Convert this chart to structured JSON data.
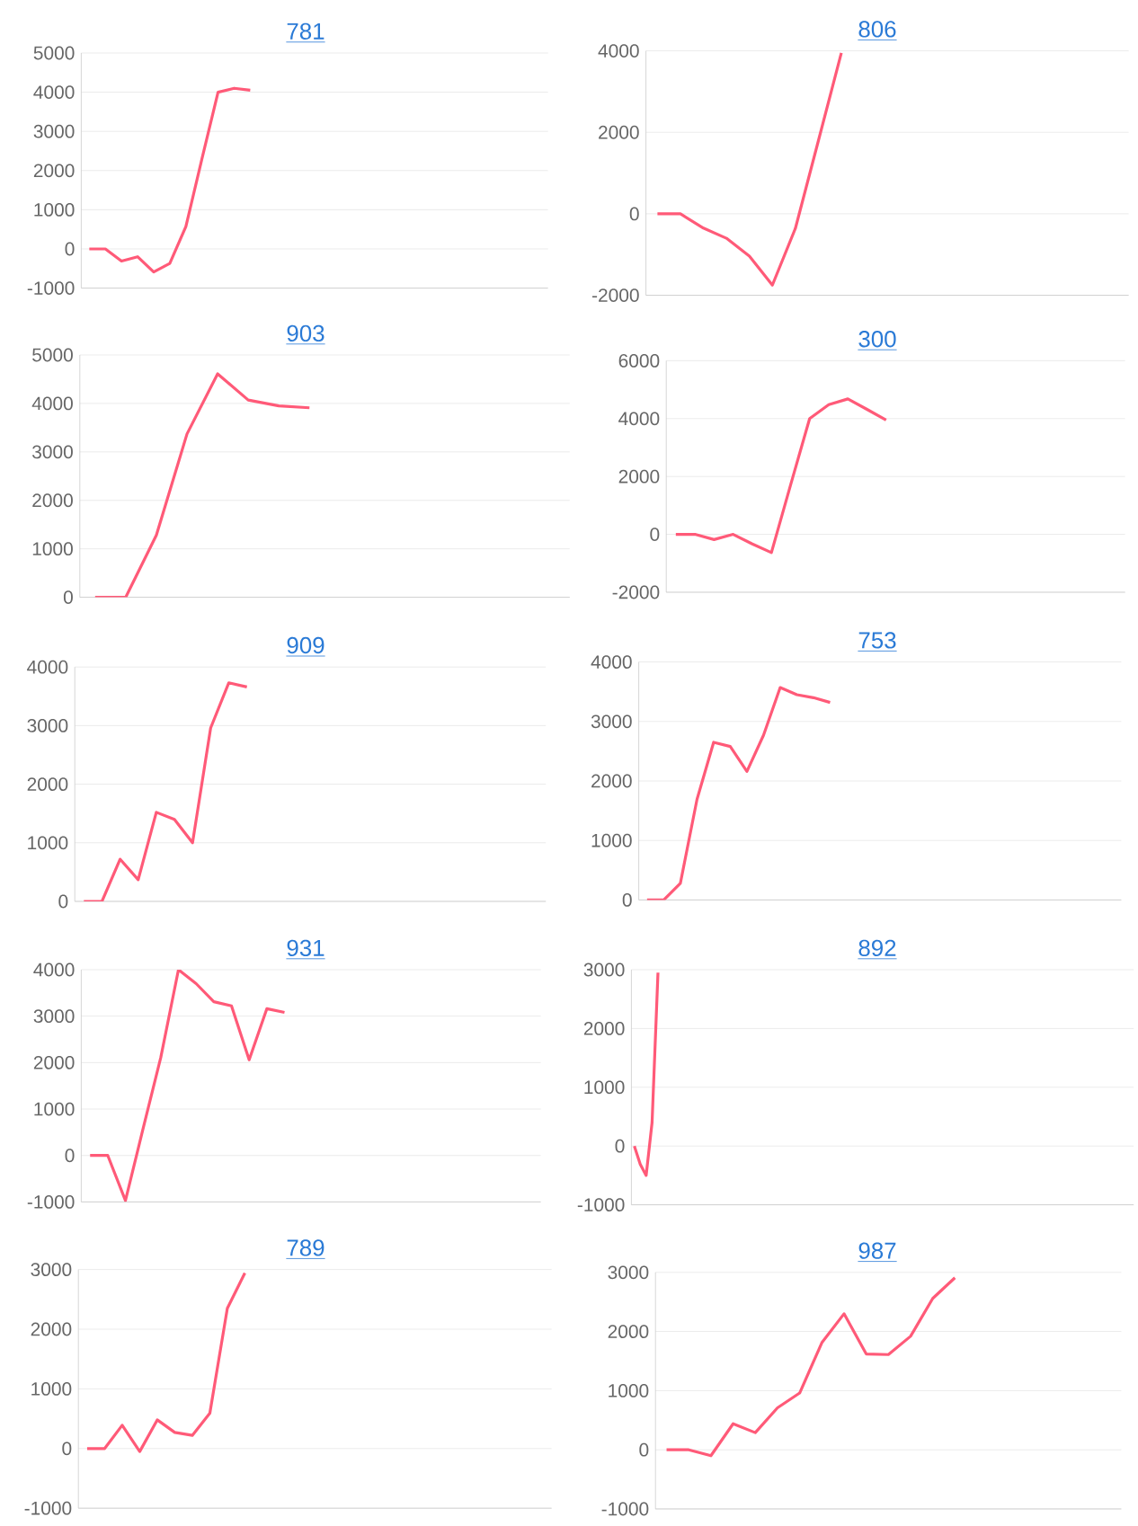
{
  "chart_data": [
    {
      "type": "line",
      "title": "781",
      "color": "#ff5a78",
      "grid": "y",
      "tick_labels": "y",
      "ylim": [
        -1000,
        5000
      ],
      "yticks": [
        -1000,
        0,
        1000,
        2000,
        3000,
        4000,
        5000
      ],
      "categories": [
        null,
        null,
        null,
        null,
        null,
        null,
        null,
        null,
        null,
        null,
        null,
        null,
        null,
        null,
        null,
        null,
        null,
        null,
        null,
        null,
        null,
        null,
        null,
        null,
        null,
        null,
        null,
        null,
        null
      ],
      "values": [
        0,
        0,
        -310,
        -200,
        -590,
        -370,
        570,
        2300,
        4000,
        4100,
        4050,
        null,
        null,
        null,
        null,
        null,
        null,
        null,
        null,
        null,
        null,
        null,
        null,
        null,
        null,
        null,
        null,
        null,
        null
      ]
    },
    {
      "type": "line",
      "title": "806",
      "color": "#ff5a78",
      "grid": "y",
      "tick_labels": "y",
      "ylim": [
        -2000,
        4000
      ],
      "yticks": [
        -2000,
        0,
        2000,
        4000
      ],
      "categories": [
        null,
        null,
        null,
        null,
        null,
        null,
        null,
        null,
        null,
        null,
        null,
        null,
        null,
        null,
        null,
        null,
        null,
        null,
        null,
        null,
        null
      ],
      "values": [
        0,
        0,
        -350,
        -600,
        -1040,
        -1750,
        -360,
        1790,
        3950,
        null,
        null,
        null,
        null,
        null,
        null,
        null,
        null,
        null,
        null,
        null,
        null
      ]
    },
    {
      "type": "line",
      "title": "903",
      "color": "#ff5a78",
      "grid": "y",
      "tick_labels": "y",
      "ylim": [
        0,
        5000
      ],
      "yticks": [
        0,
        1000,
        2000,
        3000,
        4000,
        5000
      ],
      "categories": [
        null,
        null,
        null,
        null,
        null,
        null,
        null,
        null,
        null,
        null,
        null,
        null,
        null,
        null,
        null,
        null
      ],
      "values": [
        0,
        0,
        1280,
        3370,
        4610,
        4070,
        3950,
        3910,
        null,
        null,
        null,
        null,
        null,
        null,
        null,
        null
      ]
    },
    {
      "type": "line",
      "title": "300",
      "color": "#ff5a78",
      "grid": "y",
      "tick_labels": "y",
      "ylim": [
        -2000,
        6000
      ],
      "yticks": [
        -2000,
        0,
        2000,
        4000,
        6000
      ],
      "categories": [
        null,
        null,
        null,
        null,
        null,
        null,
        null,
        null,
        null,
        null,
        null,
        null,
        null,
        null,
        null,
        null,
        null,
        null,
        null,
        null,
        null,
        null,
        null,
        null
      ],
      "values": [
        0,
        0,
        -180,
        0,
        -330,
        -630,
        1700,
        4000,
        4480,
        4680,
        4320,
        3950,
        null,
        null,
        null,
        null,
        null,
        null,
        null,
        null,
        null,
        null,
        null,
        null
      ]
    },
    {
      "type": "line",
      "title": "909",
      "color": "#ff5a78",
      "grid": "y",
      "tick_labels": "y",
      "ylim": [
        0,
        4000
      ],
      "yticks": [
        0,
        1000,
        2000,
        3000,
        4000
      ],
      "categories": [
        null,
        null,
        null,
        null,
        null,
        null,
        null,
        null,
        null,
        null,
        null,
        null,
        null,
        null,
        null,
        null,
        null,
        null,
        null,
        null,
        null,
        null,
        null,
        null,
        null,
        null
      ],
      "values": [
        0,
        0,
        720,
        370,
        1520,
        1400,
        1000,
        2960,
        3730,
        3660,
        null,
        null,
        null,
        null,
        null,
        null,
        null,
        null,
        null,
        null,
        null,
        null,
        null,
        null,
        null,
        null
      ]
    },
    {
      "type": "line",
      "title": "753",
      "color": "#ff5a78",
      "grid": "y",
      "tick_labels": "y",
      "ylim": [
        0,
        4000
      ],
      "yticks": [
        0,
        1000,
        2000,
        3000,
        4000
      ],
      "categories": [
        null,
        null,
        null,
        null,
        null,
        null,
        null,
        null,
        null,
        null,
        null,
        null,
        null,
        null,
        null,
        null,
        null,
        null,
        null,
        null,
        null,
        null,
        null,
        null,
        null,
        null,
        null,
        null,
        null
      ],
      "values": [
        0,
        0,
        280,
        1690,
        2650,
        2580,
        2160,
        2770,
        3570,
        3450,
        3400,
        3320,
        null,
        null,
        null,
        null,
        null,
        null,
        null,
        null,
        null,
        null,
        null,
        null,
        null,
        null,
        null,
        null,
        null
      ]
    },
    {
      "type": "line",
      "title": "931",
      "color": "#ff5a78",
      "grid": "y",
      "tick_labels": "y",
      "ylim": [
        -1000,
        4000
      ],
      "yticks": [
        -1000,
        0,
        1000,
        2000,
        3000,
        4000
      ],
      "categories": [
        null,
        null,
        null,
        null,
        null,
        null,
        null,
        null,
        null,
        null,
        null,
        null,
        null,
        null,
        null,
        null,
        null,
        null,
        null,
        null,
        null,
        null,
        null,
        null,
        null,
        null
      ],
      "values": [
        0,
        0,
        -970,
        580,
        2110,
        4000,
        3700,
        3310,
        3220,
        2060,
        3160,
        3080,
        null,
        null,
        null,
        null,
        null,
        null,
        null,
        null,
        null,
        null,
        null,
        null,
        null,
        null
      ]
    },
    {
      "type": "line",
      "title": "892",
      "color": "#ff5a78",
      "grid": "y",
      "tick_labels": "y",
      "ylim": [
        -1000,
        3000
      ],
      "yticks": [
        -1000,
        0,
        1000,
        2000,
        3000
      ],
      "categories": [
        null,
        null,
        null,
        null,
        null,
        null,
        null,
        null,
        null,
        null,
        null,
        null,
        null,
        null,
        null,
        null,
        null,
        null,
        null,
        null,
        null,
        null,
        null,
        null,
        null,
        null,
        null,
        null,
        null,
        null,
        null,
        null,
        null,
        null,
        null,
        null,
        null,
        null,
        null,
        null,
        null,
        null,
        null,
        null,
        null,
        null,
        null,
        null,
        null,
        null,
        null,
        null,
        null,
        null,
        null,
        null,
        null,
        null,
        null,
        null,
        null,
        null,
        null,
        null,
        null,
        null,
        null,
        null,
        null,
        null,
        null,
        null,
        null,
        null,
        null,
        null,
        null,
        null,
        null,
        null,
        null,
        null,
        null,
        null,
        null
      ],
      "values": [
        0,
        -310,
        -500,
        400,
        2950,
        null,
        null,
        null,
        null,
        null,
        null,
        null,
        null,
        null,
        null,
        null,
        null,
        null,
        null,
        null,
        null,
        null,
        null,
        null,
        null,
        null,
        null,
        null,
        null,
        null,
        null,
        null,
        null,
        null,
        null,
        null,
        null,
        null,
        null,
        null,
        null,
        null,
        null,
        null,
        null,
        null,
        null,
        null,
        null,
        null,
        null,
        null,
        null,
        null,
        null,
        null,
        null,
        null,
        null,
        null,
        null,
        null,
        null,
        null,
        null,
        null,
        null,
        null,
        null,
        null,
        null,
        null,
        null,
        null,
        null,
        null,
        null,
        null,
        null,
        null,
        null,
        null,
        null,
        null,
        null
      ]
    },
    {
      "type": "line",
      "title": "789",
      "color": "#ff5a78",
      "grid": "y",
      "tick_labels": "y",
      "ylim": [
        -1000,
        3000
      ],
      "yticks": [
        -1000,
        0,
        1000,
        2000,
        3000
      ],
      "categories": [
        null,
        null,
        null,
        null,
        null,
        null,
        null,
        null,
        null,
        null,
        null,
        null,
        null,
        null,
        null,
        null,
        null,
        null,
        null,
        null,
        null,
        null,
        null,
        null,
        null,
        null,
        null
      ],
      "values": [
        0,
        0,
        390,
        -50,
        480,
        270,
        220,
        590,
        2350,
        2940,
        null,
        null,
        null,
        null,
        null,
        null,
        null,
        null,
        null,
        null,
        null,
        null,
        null,
        null,
        null,
        null,
        null
      ]
    },
    {
      "type": "line",
      "title": "987",
      "color": "#ff5a78",
      "grid": "y",
      "tick_labels": "y",
      "ylim": [
        -1000,
        3000
      ],
      "yticks": [
        -1000,
        0,
        1000,
        2000,
        3000
      ],
      "categories": [
        null,
        null,
        null,
        null,
        null,
        null,
        null,
        null,
        null,
        null,
        null,
        null,
        null,
        null,
        null,
        null,
        null,
        null,
        null,
        null,
        null
      ],
      "values": [
        0,
        0,
        -100,
        440,
        290,
        710,
        960,
        1810,
        2300,
        1620,
        1610,
        1920,
        2560,
        2910,
        null,
        null,
        null,
        null,
        null,
        null,
        null
      ]
    }
  ]
}
